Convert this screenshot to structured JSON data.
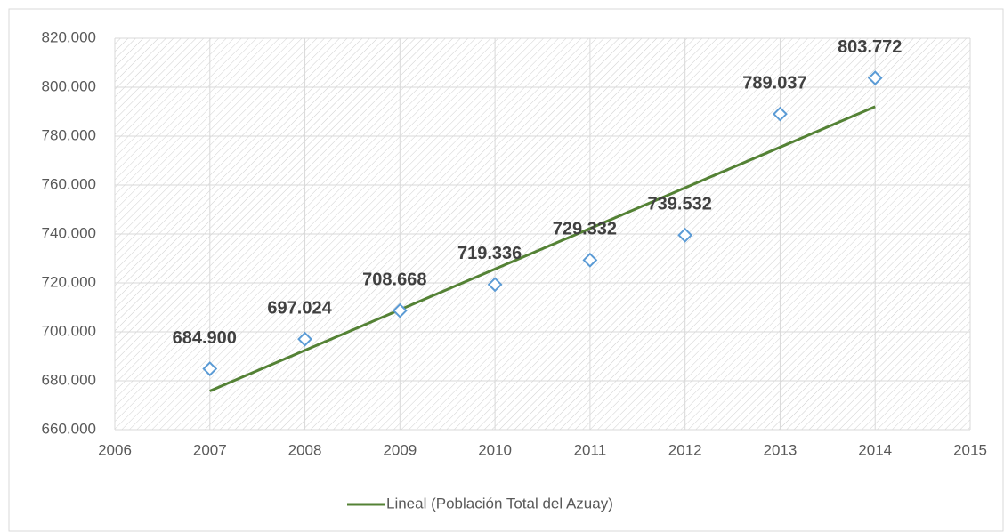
{
  "chart_data": {
    "type": "scatter",
    "x": [
      2007,
      2008,
      2009,
      2010,
      2011,
      2012,
      2013,
      2014
    ],
    "series": [
      {
        "values": [
          684900,
          697024,
          708668,
          719336,
          729332,
          739532,
          789037,
          803772
        ],
        "value_labels": [
          "684.900",
          "697.024",
          "708.668",
          "719.336",
          "729.332",
          "739.532",
          "789.037",
          "803.772"
        ],
        "color": "#5b9bd5"
      }
    ],
    "trendline": {
      "name": "Lineal (Población Total del Azuay)",
      "color": "#548235",
      "type": "linear"
    },
    "xlim": [
      2006,
      2015
    ],
    "xticks": [
      2006,
      2007,
      2008,
      2009,
      2010,
      2011,
      2012,
      2013,
      2014,
      2015
    ],
    "ylim": [
      660000,
      820000
    ],
    "yticks": [
      {
        "value": 660000,
        "label": "660.000"
      },
      {
        "value": 680000,
        "label": "680.000"
      },
      {
        "value": 700000,
        "label": "700.000"
      },
      {
        "value": 720000,
        "label": "720.000"
      },
      {
        "value": 740000,
        "label": "740.000"
      },
      {
        "value": 760000,
        "label": "760.000"
      },
      {
        "value": 780000,
        "label": "780.000"
      },
      {
        "value": 800000,
        "label": "800.000"
      },
      {
        "value": 820000,
        "label": "820.000"
      }
    ],
    "grid": true,
    "legend": "bottom"
  }
}
